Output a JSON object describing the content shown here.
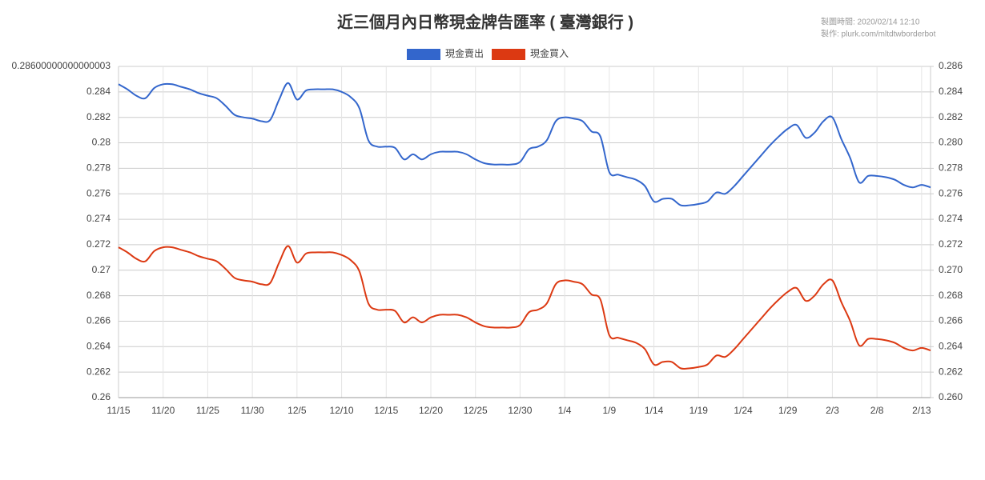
{
  "chart_data": {
    "type": "line",
    "title": "近三個月內日幣現金牌告匯率 ( 臺灣銀行 )",
    "notes": [
      "製圖時間: 2020/02/14 12:10",
      "製作: plurk.com/mltdtwborderbot"
    ],
    "categories": [
      "11/15",
      null,
      null,
      null,
      null,
      "11/20",
      null,
      null,
      null,
      null,
      "11/25",
      null,
      null,
      null,
      null,
      "11/30",
      null,
      null,
      null,
      null,
      "12/5",
      null,
      null,
      null,
      null,
      "12/10",
      null,
      null,
      null,
      null,
      "12/15",
      null,
      null,
      null,
      null,
      "12/20",
      null,
      null,
      null,
      null,
      "12/25",
      null,
      null,
      null,
      null,
      "12/30",
      null,
      null,
      null,
      null,
      "1/4",
      null,
      null,
      null,
      null,
      "1/9",
      null,
      null,
      null,
      null,
      "1/14",
      null,
      null,
      null,
      null,
      "1/19",
      null,
      null,
      null,
      null,
      "1/24",
      null,
      null,
      null,
      null,
      "1/29",
      null,
      null,
      null,
      null,
      "2/3",
      null,
      null,
      null,
      null,
      "2/8",
      null,
      null,
      null,
      null,
      "2/13",
      null
    ],
    "series": [
      {
        "name": "現金賣出",
        "color": "#3366cc",
        "values": [
          0.2846,
          0.2842,
          0.2837,
          0.2835,
          0.2843,
          0.2846,
          0.2846,
          0.2844,
          0.2842,
          0.2839,
          0.2837,
          0.2835,
          0.2829,
          0.2822,
          0.282,
          0.2819,
          0.2817,
          0.2818,
          0.2834,
          0.2847,
          0.2834,
          0.2841,
          0.2842,
          0.2842,
          0.2842,
          0.284,
          0.2836,
          0.2827,
          0.2802,
          0.2797,
          0.2797,
          0.2796,
          0.2787,
          0.2791,
          0.2787,
          0.2791,
          0.2793,
          0.2793,
          0.2793,
          0.2791,
          0.2787,
          0.2784,
          0.2783,
          0.2783,
          0.2783,
          0.2785,
          0.2795,
          0.2797,
          0.2802,
          0.2817,
          0.282,
          0.2819,
          0.2817,
          0.2809,
          0.2805,
          0.2777,
          0.2775,
          0.2773,
          0.2771,
          0.2766,
          0.2754,
          0.2756,
          0.2756,
          0.2751,
          0.2751,
          0.2752,
          0.2754,
          0.2761,
          0.276,
          0.2766,
          0.2774,
          0.2782,
          0.279,
          0.2798,
          0.2805,
          0.2811,
          0.2814,
          0.2804,
          0.2808,
          0.2817,
          0.282,
          0.2803,
          0.2788,
          0.2769,
          0.2774,
          0.2774,
          0.2773,
          0.2771,
          0.2767,
          0.2765,
          0.2767,
          0.2765
        ]
      },
      {
        "name": "現金買入",
        "color": "#dc3912",
        "axis": "y2",
        "values": [
          0.2718,
          0.2714,
          0.2709,
          0.2707,
          0.2715,
          0.2718,
          0.2718,
          0.2716,
          0.2714,
          0.2711,
          0.2709,
          0.2707,
          0.2701,
          0.2694,
          0.2692,
          0.2691,
          0.2689,
          0.269,
          0.2706,
          0.2719,
          0.2706,
          0.2713,
          0.2714,
          0.2714,
          0.2714,
          0.2712,
          0.2708,
          0.2699,
          0.2674,
          0.2669,
          0.2669,
          0.2668,
          0.2659,
          0.2663,
          0.2659,
          0.2663,
          0.2665,
          0.2665,
          0.2665,
          0.2663,
          0.2659,
          0.2656,
          0.2655,
          0.2655,
          0.2655,
          0.2657,
          0.2667,
          0.2669,
          0.2674,
          0.2689,
          0.2692,
          0.2691,
          0.2689,
          0.2681,
          0.2677,
          0.2649,
          0.2647,
          0.2645,
          0.2643,
          0.2638,
          0.2626,
          0.2628,
          0.2628,
          0.2623,
          0.2623,
          0.2624,
          0.2626,
          0.2633,
          0.2632,
          0.2638,
          0.2646,
          0.2654,
          0.2662,
          0.267,
          0.2677,
          0.2683,
          0.2686,
          0.2676,
          0.268,
          0.2689,
          0.2692,
          0.2675,
          0.266,
          0.2641,
          0.2646,
          0.2646,
          0.2645,
          0.2643,
          0.2639,
          0.2637,
          0.2639,
          0.2637
        ]
      }
    ],
    "ylim": [
      0.26,
      0.286
    ],
    "yticks": [
      {
        "value": 0.286,
        "label": "0.28600000000000003"
      },
      0.284,
      0.282,
      0.28,
      0.278,
      0.276,
      0.274,
      0.272,
      0.27,
      0.268,
      0.266,
      0.264,
      0.262,
      0.26
    ],
    "y2lim": [
      0.26,
      0.286
    ],
    "y2ticks": [
      0.286,
      0.284,
      0.282,
      {
        "value": 0.28,
        "label": "0.280"
      },
      0.278,
      0.276,
      0.274,
      0.272,
      {
        "value": 0.27,
        "label": "0.270"
      },
      0.268,
      0.266,
      0.264,
      0.262,
      {
        "value": 0.26,
        "label": "0.260"
      }
    ],
    "grid": true,
    "legend": "top"
  }
}
